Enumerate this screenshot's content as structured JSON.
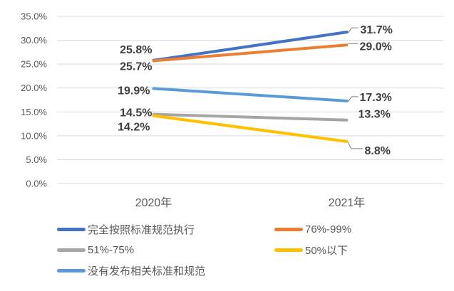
{
  "chart_data": {
    "type": "line",
    "title": "",
    "categories": [
      "2020年",
      "2021年"
    ],
    "series": [
      {
        "name": "完全按照标准规范执行",
        "color": "#4472C4",
        "values": [
          25.8,
          31.7
        ],
        "labels": [
          "25.8%",
          "31.7%"
        ]
      },
      {
        "name": "76%-99%",
        "color": "#ED7D31",
        "values": [
          25.7,
          29.0
        ],
        "labels": [
          "25.7%",
          "29.0%"
        ]
      },
      {
        "name": "51%-75%",
        "color": "#A5A5A5",
        "values": [
          14.5,
          13.3
        ],
        "labels": [
          "14.5%",
          "13.3%"
        ]
      },
      {
        "name": "50%以下",
        "color": "#FFC000",
        "values": [
          14.2,
          8.8
        ],
        "labels": [
          "14.2%",
          "8.8%"
        ]
      },
      {
        "name": "没有发布相关标准和规范",
        "color": "#5B9BD5",
        "values": [
          19.9,
          17.3
        ],
        "labels": [
          "19.9%",
          "17.3%"
        ]
      }
    ],
    "y_axis": {
      "min": 0,
      "max": 35,
      "step": 5,
      "tick_labels": [
        "0.0%",
        "5.0%",
        "10.0%",
        "15.0%",
        "20.0%",
        "25.0%",
        "30.0%",
        "35.0%"
      ]
    },
    "x_axis": {
      "tick_labels": [
        "2020年",
        "2021年"
      ]
    },
    "grid": true,
    "legend_position": "bottom",
    "colors": {
      "gridline": "#d9d9d9",
      "axis_text": "#595959",
      "data_label_text": "#3f3f3f",
      "leader_line": "#7f7f7f",
      "background": "#ffffff"
    }
  }
}
